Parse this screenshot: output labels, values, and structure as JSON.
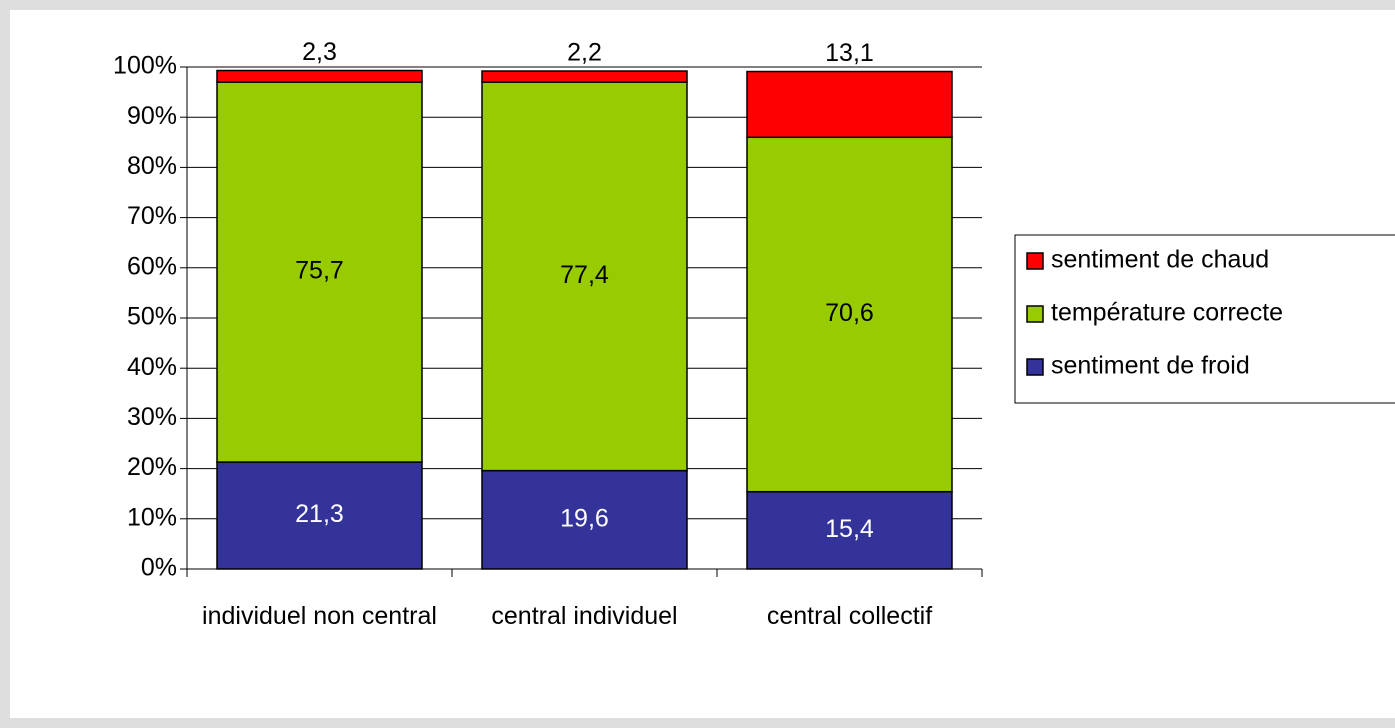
{
  "chart_data": {
    "type": "stacked_bar",
    "categories": [
      "individuel non central",
      "central individuel",
      "central collectif"
    ],
    "series": [
      {
        "name": "sentiment de froid",
        "color": "#333399",
        "values": [
          21.3,
          19.6,
          15.4
        ],
        "value_labels": [
          "21,3",
          "19,6",
          "15,4"
        ]
      },
      {
        "name": "température correcte",
        "color": "#99cc00",
        "values": [
          75.7,
          77.4,
          70.6
        ],
        "value_labels": [
          "75,7",
          "77,4",
          "70,6"
        ]
      },
      {
        "name": "sentiment de chaud",
        "color": "#ff0000",
        "values": [
          2.3,
          2.2,
          13.1
        ],
        "value_labels": [
          "2,3",
          "2,2",
          "13,1"
        ]
      }
    ],
    "ylim": [
      0,
      100
    ],
    "yticks": [
      {
        "value": 0,
        "label": "0%"
      },
      {
        "value": 10,
        "label": "10%"
      },
      {
        "value": 20,
        "label": "20%"
      },
      {
        "value": 30,
        "label": "30%"
      },
      {
        "value": 40,
        "label": "40%"
      },
      {
        "value": 50,
        "label": "50%"
      },
      {
        "value": 60,
        "label": "60%"
      },
      {
        "value": 70,
        "label": "70%"
      },
      {
        "value": 80,
        "label": "80%"
      },
      {
        "value": 90,
        "label": "90%"
      },
      {
        "value": 100,
        "label": "100%"
      }
    ],
    "grid": true,
    "legend": "right"
  }
}
